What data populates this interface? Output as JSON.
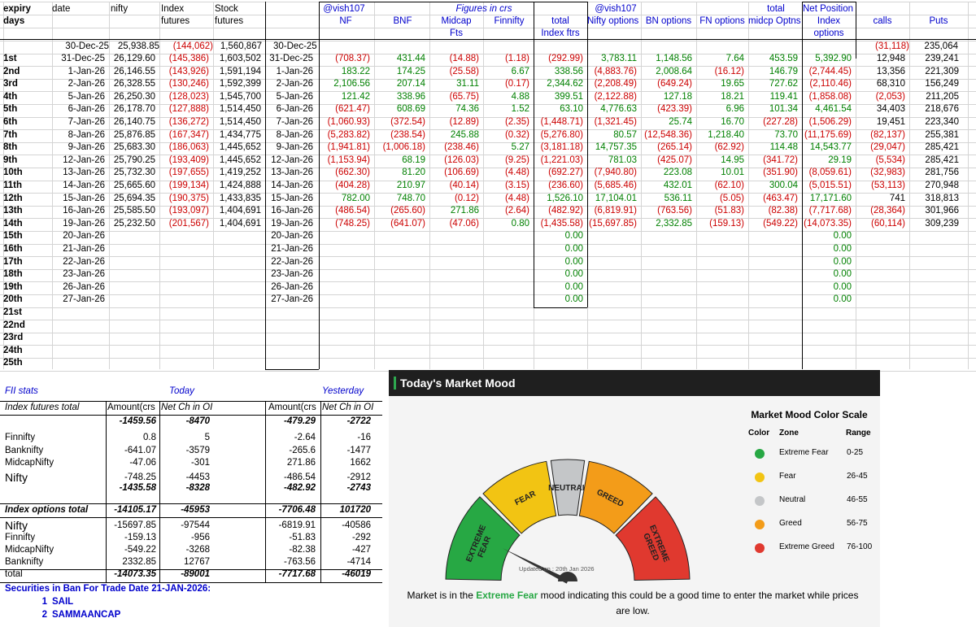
{
  "header": {
    "col_expiry": "expiry",
    "col_days": "days",
    "col_date": "date",
    "col_nifty": "nifty",
    "col_index_fut_1": "Index",
    "col_index_fut_2": "futures",
    "col_stock_fut_1": "Stock",
    "col_stock_fut_2": "futures",
    "handle_left": "@vish107",
    "figures_in_crs": "Figures in crs",
    "handle_right": "@vish107",
    "total_top": "total",
    "net_position": "Net Position",
    "col_nf": "NF",
    "col_bnf": "BNF",
    "col_midcap_1": "Midcap",
    "col_midcap_2": "Fts",
    "col_finnifty": "Finnifty",
    "col_total_index_1": "total",
    "col_total_index_2": "Index ftrs",
    "col_nifty_options": "Nifty options",
    "col_bn_options": "BN options",
    "col_fn_options": "FN options",
    "col_midcp_options": "midcp Optns",
    "col_index_options_1": "Index",
    "col_index_options_2": "options",
    "col_calls": "calls",
    "col_puts": "Puts"
  },
  "baseline": {
    "date": "30-Dec-25",
    "nifty": "25,938.85",
    "index_fut": "(144,062)",
    "stock_fut": "1,560,867",
    "date2": "30-Dec-25",
    "calls": "(31,118)",
    "puts": "235,064"
  },
  "rows": [
    {
      "day": "1st",
      "date": "31-Dec-25",
      "nifty": "26,129.60",
      "ifut": "(145,386)",
      "sfut": "1,603,502",
      "date2": "31-Dec-25",
      "nf": "(708.37)",
      "bnf": "431.44",
      "midcap": "(14.88)",
      "finn": "(1.18)",
      "total": "(292.99)",
      "niftyopt": "3,783.11",
      "bnopt": "1,148.56",
      "fnopt": "7.64",
      "midopt": "453.59",
      "idxopt": "5,392.90",
      "calls": "12,948",
      "puts": "239,241"
    },
    {
      "day": "2nd",
      "date": "1-Jan-26",
      "nifty": "26,146.55",
      "ifut": "(143,926)",
      "sfut": "1,591,194",
      "date2": "1-Jan-26",
      "nf": "183.22",
      "bnf": "174.25",
      "midcap": "(25.58)",
      "finn": "6.67",
      "total": "338.56",
      "niftyopt": "(4,883.76)",
      "bnopt": "2,008.64",
      "fnopt": "(16.12)",
      "midopt": "146.79",
      "idxopt": "(2,744.45)",
      "calls": "13,356",
      "puts": "221,309"
    },
    {
      "day": "3rd",
      "date": "2-Jan-26",
      "nifty": "26,328.55",
      "ifut": "(130,246)",
      "sfut": "1,592,399",
      "date2": "2-Jan-26",
      "nf": "2,106.56",
      "bnf": "207.14",
      "midcap": "31.11",
      "finn": "(0.17)",
      "total": "2,344.62",
      "niftyopt": "(2,208.49)",
      "bnopt": "(649.24)",
      "fnopt": "19.65",
      "midopt": "727.62",
      "idxopt": "(2,110.46)",
      "calls": "68,310",
      "puts": "156,249"
    },
    {
      "day": "4th",
      "date": "5-Jan-26",
      "nifty": "26,250.30",
      "ifut": "(128,023)",
      "sfut": "1,545,700",
      "date2": "5-Jan-26",
      "nf": "121.42",
      "bnf": "338.96",
      "midcap": "(65.75)",
      "finn": "4.88",
      "total": "399.51",
      "niftyopt": "(2,122.88)",
      "bnopt": "127.18",
      "fnopt": "18.21",
      "midopt": "119.41",
      "idxopt": "(1,858.08)",
      "calls": "(2,053)",
      "puts": "211,205"
    },
    {
      "day": "5th",
      "date": "6-Jan-26",
      "nifty": "26,178.70",
      "ifut": "(127,888)",
      "sfut": "1,514,450",
      "date2": "6-Jan-26",
      "nf": "(621.47)",
      "bnf": "608.69",
      "midcap": "74.36",
      "finn": "1.52",
      "total": "63.10",
      "niftyopt": "4,776.63",
      "bnopt": "(423.39)",
      "fnopt": "6.96",
      "midopt": "101.34",
      "idxopt": "4,461.54",
      "calls": "34,403",
      "puts": "218,676"
    },
    {
      "day": "6th",
      "date": "7-Jan-26",
      "nifty": "26,140.75",
      "ifut": "(136,272)",
      "sfut": "1,514,450",
      "date2": "7-Jan-26",
      "nf": "(1,060.93)",
      "bnf": "(372.54)",
      "midcap": "(12.89)",
      "finn": "(2.35)",
      "total": "(1,448.71)",
      "niftyopt": "(1,321.45)",
      "bnopt": "25.74",
      "fnopt": "16.70",
      "midopt": "(227.28)",
      "idxopt": "(1,506.29)",
      "calls": "19,451",
      "puts": "223,340"
    },
    {
      "day": "7th",
      "date": "8-Jan-26",
      "nifty": "25,876.85",
      "ifut": "(167,347)",
      "sfut": "1,434,775",
      "date2": "8-Jan-26",
      "nf": "(5,283.82)",
      "bnf": "(238.54)",
      "midcap": "245.88",
      "finn": "(0.32)",
      "total": "(5,276.80)",
      "niftyopt": "80.57",
      "bnopt": "(12,548.36)",
      "fnopt": "1,218.40",
      "midopt": "73.70",
      "idxopt": "(11,175.69)",
      "calls": "(82,137)",
      "puts": "255,381"
    },
    {
      "day": "8th",
      "date": "9-Jan-26",
      "nifty": "25,683.30",
      "ifut": "(186,063)",
      "sfut": "1,445,652",
      "date2": "9-Jan-26",
      "nf": "(1,941.81)",
      "bnf": "(1,006.18)",
      "midcap": "(238.46)",
      "finn": "5.27",
      "total": "(3,181.18)",
      "niftyopt": "14,757.35",
      "bnopt": "(265.14)",
      "fnopt": "(62.92)",
      "midopt": "114.48",
      "idxopt": "14,543.77",
      "calls": "(29,047)",
      "puts": "285,421"
    },
    {
      "day": "9th",
      "date": "12-Jan-26",
      "nifty": "25,790.25",
      "ifut": "(193,409)",
      "sfut": "1,445,652",
      "date2": "12-Jan-26",
      "nf": "(1,153.94)",
      "bnf": "68.19",
      "midcap": "(126.03)",
      "finn": "(9.25)",
      "total": "(1,221.03)",
      "niftyopt": "781.03",
      "bnopt": "(425.07)",
      "fnopt": "14.95",
      "midopt": "(341.72)",
      "idxopt": "29.19",
      "calls": "(5,534)",
      "puts": "285,421"
    },
    {
      "day": "10th",
      "date": "13-Jan-26",
      "nifty": "25,732.30",
      "ifut": "(197,655)",
      "sfut": "1,419,252",
      "date2": "13-Jan-26",
      "nf": "(662.30)",
      "bnf": "81.20",
      "midcap": "(106.69)",
      "finn": "(4.48)",
      "total": "(692.27)",
      "niftyopt": "(7,940.80)",
      "bnopt": "223.08",
      "fnopt": "10.01",
      "midopt": "(351.90)",
      "idxopt": "(8,059.61)",
      "calls": "(32,983)",
      "puts": "281,756"
    },
    {
      "day": "11th",
      "date": "14-Jan-26",
      "nifty": "25,665.60",
      "ifut": "(199,134)",
      "sfut": "1,424,888",
      "date2": "14-Jan-26",
      "nf": "(404.28)",
      "bnf": "210.97",
      "midcap": "(40.14)",
      "finn": "(3.15)",
      "total": "(236.60)",
      "niftyopt": "(5,685.46)",
      "bnopt": "432.01",
      "fnopt": "(62.10)",
      "midopt": "300.04",
      "idxopt": "(5,015.51)",
      "calls": "(53,113)",
      "puts": "270,948"
    },
    {
      "day": "12th",
      "date": "15-Jan-26",
      "nifty": "25,694.35",
      "ifut": "(190,375)",
      "sfut": "1,433,835",
      "date2": "15-Jan-26",
      "nf": "782.00",
      "bnf": "748.70",
      "midcap": "(0.12)",
      "finn": "(4.48)",
      "total": "1,526.10",
      "niftyopt": "17,104.01",
      "bnopt": "536.11",
      "fnopt": "(5.05)",
      "midopt": "(463.47)",
      "idxopt": "17,171.60",
      "calls": "741",
      "puts": "318,813"
    },
    {
      "day": "13th",
      "date": "16-Jan-26",
      "nifty": "25,585.50",
      "ifut": "(193,097)",
      "sfut": "1,404,691",
      "date2": "16-Jan-26",
      "nf": "(486.54)",
      "bnf": "(265.60)",
      "midcap": "271.86",
      "finn": "(2.64)",
      "total": "(482.92)",
      "niftyopt": "(6,819.91)",
      "bnopt": "(763.56)",
      "fnopt": "(51.83)",
      "midopt": "(82.38)",
      "idxopt": "(7,717.68)",
      "calls": "(28,364)",
      "puts": "301,966"
    },
    {
      "day": "14th",
      "date": "19-Jan-26",
      "nifty": "25,232.50",
      "ifut": "(201,567)",
      "sfut": "1,404,691",
      "date2": "19-Jan-26",
      "nf": "(748.25)",
      "bnf": "(641.07)",
      "midcap": "(47.06)",
      "finn": "0.80",
      "total": "(1,435.58)",
      "niftyopt": "(15,697.85)",
      "bnopt": "2,332.85",
      "fnopt": "(159.13)",
      "midopt": "(549.22)",
      "idxopt": "(14,073.35)",
      "calls": "(60,114)",
      "puts": "309,239"
    },
    {
      "day": "15th",
      "date": "20-Jan-26",
      "date2": "20-Jan-26",
      "total": "0.00",
      "idxopt": "0.00"
    },
    {
      "day": "16th",
      "date": "21-Jan-26",
      "date2": "21-Jan-26",
      "total": "0.00",
      "idxopt": "0.00"
    },
    {
      "day": "17th",
      "date": "22-Jan-26",
      "date2": "22-Jan-26",
      "total": "0.00",
      "idxopt": "0.00"
    },
    {
      "day": "18th",
      "date": "23-Jan-26",
      "date2": "23-Jan-26",
      "total": "0.00",
      "idxopt": "0.00"
    },
    {
      "day": "19th",
      "date": "26-Jan-26",
      "date2": "26-Jan-26",
      "total": "0.00",
      "idxopt": "0.00"
    },
    {
      "day": "20th",
      "date": "27-Jan-26",
      "date2": "27-Jan-26",
      "total": "0.00",
      "idxopt": "0.00"
    },
    {
      "day": "21st"
    },
    {
      "day": "22nd"
    },
    {
      "day": "23rd"
    },
    {
      "day": "24th"
    },
    {
      "day": "25th"
    }
  ],
  "stats": {
    "fii_stats": "FII stats",
    "today": "Today",
    "yesterday": "Yesterday",
    "index_futures_total": "Index futures total",
    "amount_hdr": "Amount(crs",
    "net_ch_hdr": "Net Ch in OI",
    "futures_total_today": {
      "amt": "-1459.56",
      "oi": "-8470"
    },
    "futures_total_yday": {
      "amt": "-479.29",
      "oi": "-2722"
    },
    "futures_rows": [
      {
        "name": "Finnifty",
        "t_amt": "0.8",
        "t_oi": "5",
        "y_amt": "-2.64",
        "y_oi": "-16"
      },
      {
        "name": "Banknifty",
        "t_amt": "-641.07",
        "t_oi": "-3579",
        "y_amt": "-265.6",
        "y_oi": "-1477"
      },
      {
        "name": "MidcapNifty",
        "t_amt": "-47.06",
        "t_oi": "-301",
        "y_amt": "271.86",
        "y_oi": "1662"
      },
      {
        "name": "Nifty",
        "t_amt": "-748.25",
        "t_oi": "-4453",
        "y_amt": "-486.54",
        "y_oi": "-2912"
      },
      {
        "name": "",
        "t_amt": "-1435.58",
        "t_oi": "-8328",
        "y_amt": "-482.92",
        "y_oi": "-2743"
      }
    ],
    "index_options_total": "Index options total",
    "options_total_today": {
      "amt": "-14105.17",
      "oi": "-45953"
    },
    "options_total_yday": {
      "amt": "-7706.48",
      "oi": "101720"
    },
    "options_rows": [
      {
        "name": "Nifty",
        "t_amt": "-15697.85",
        "t_oi": "-97544",
        "y_amt": "-6819.91",
        "y_oi": "-40586"
      },
      {
        "name": "Finnifty",
        "t_amt": "-159.13",
        "t_oi": "-956",
        "y_amt": "-51.83",
        "y_oi": "-292"
      },
      {
        "name": "MidcapNifty",
        "t_amt": "-549.22",
        "t_oi": "-3268",
        "y_amt": "-82.38",
        "y_oi": "-427"
      },
      {
        "name": "Banknifty",
        "t_amt": "2332.85",
        "t_oi": "12767",
        "y_amt": "-763.56",
        "y_oi": "-4714"
      },
      {
        "name": "total",
        "t_amt": "-14073.35",
        "t_oi": "-89001",
        "y_amt": "-7717.68",
        "y_oi": "-46019"
      }
    ],
    "ban_title": "Securities in Ban For Trade Date 21-JAN-2026:",
    "ban_list": [
      {
        "n": "1",
        "name": "SAIL"
      },
      {
        "n": "2",
        "name": "SAMMAANCAP"
      }
    ]
  },
  "mood": {
    "title": "Today's Market Mood",
    "gauge_value": 15,
    "gauge_labels": [
      "EXTREME FEAR",
      "FEAR",
      "NEUTRAL",
      "GREED",
      "EXTREME GREED"
    ],
    "updated": "Updated on : 20th Jan 2026",
    "scale_title": "Market Mood Color Scale",
    "col_color": "Color",
    "col_zone": "Zone",
    "col_range": "Range",
    "zones": [
      {
        "zone": "Extreme Fear",
        "range": "0-25",
        "color": "#27a844"
      },
      {
        "zone": "Fear",
        "range": "26-45",
        "color": "#f2c413"
      },
      {
        "zone": "Neutral",
        "range": "46-55",
        "color": "#c4c6c8"
      },
      {
        "zone": "Greed",
        "range": "56-75",
        "color": "#f39c19"
      },
      {
        "zone": "Extreme Greed",
        "range": "76-100",
        "color": "#e0392f"
      }
    ],
    "msg_pre": "Market is in the ",
    "msg_zone": "Extreme Fear",
    "msg_post": " mood indicating this could be a good time to enter the market while prices are low."
  }
}
